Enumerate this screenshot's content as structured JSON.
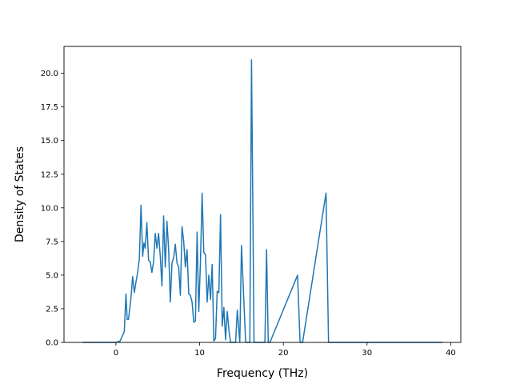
{
  "chart_data": {
    "type": "line",
    "title": "",
    "xlabel": "Frequency (THz)",
    "ylabel": "Density of States",
    "xlim": [
      -6.2,
      41.2
    ],
    "ylim": [
      0,
      22.0
    ],
    "grid": false,
    "legend": "none",
    "xticks": [
      0,
      10,
      20,
      30,
      40
    ],
    "yticks": [
      0.0,
      2.5,
      5.0,
      7.5,
      10.0,
      12.5,
      15.0,
      17.5,
      20.0
    ],
    "xtick_labels": [
      "0",
      "10",
      "20",
      "30",
      "40"
    ],
    "ytick_labels": [
      "0.0",
      "2.5",
      "5.0",
      "7.5",
      "10.0",
      "12.5",
      "15.0",
      "17.5",
      "20.0"
    ],
    "series": [
      {
        "color": "#1f77b4",
        "x": [
          -4.0,
          0.0,
          0.5,
          1.0,
          1.2,
          1.35,
          1.5,
          1.8,
          2.0,
          2.2,
          2.4,
          2.6,
          2.8,
          3.0,
          3.2,
          3.35,
          3.5,
          3.7,
          3.9,
          4.1,
          4.3,
          4.5,
          4.7,
          4.9,
          5.1,
          5.3,
          5.5,
          5.7,
          5.9,
          6.1,
          6.3,
          6.5,
          6.7,
          6.9,
          7.1,
          7.3,
          7.5,
          7.7,
          7.9,
          8.1,
          8.3,
          8.5,
          8.7,
          8.9,
          9.1,
          9.3,
          9.5,
          9.7,
          9.9,
          10.1,
          10.3,
          10.5,
          10.7,
          10.9,
          11.1,
          11.3,
          11.5,
          11.7,
          11.9,
          12.1,
          12.3,
          12.5,
          12.7,
          12.9,
          13.1,
          13.3,
          13.5,
          13.7,
          13.9,
          14.1,
          14.3,
          14.5,
          14.8,
          15.0,
          15.5,
          15.8,
          16.0,
          16.2,
          16.5,
          16.8,
          17.8,
          18.0,
          18.2,
          18.4,
          21.7,
          22.0,
          22.3,
          25.1,
          25.4,
          25.7,
          34.9,
          35.2,
          35.5,
          39.0
        ],
        "y": [
          0,
          0,
          0.1,
          0.8,
          3.6,
          1.7,
          1.7,
          3.3,
          4.9,
          3.7,
          4.5,
          5.2,
          6.2,
          10.2,
          6.4,
          7.4,
          7.0,
          8.9,
          6.1,
          6.0,
          5.2,
          6.0,
          8.1,
          7.0,
          8.1,
          6.4,
          4.2,
          9.4,
          5.6,
          9.0,
          6.9,
          3.0,
          5.9,
          6.3,
          7.3,
          5.9,
          5.6,
          3.5,
          8.6,
          7.5,
          5.6,
          6.9,
          3.6,
          3.5,
          3.0,
          1.5,
          1.6,
          8.2,
          2.3,
          6.0,
          11.1,
          6.7,
          6.5,
          3.0,
          5.0,
          3.2,
          5.8,
          0.1,
          0.3,
          3.8,
          3.7,
          9.5,
          1.2,
          2.6,
          0.2,
          2.3,
          0.9,
          0,
          0,
          0,
          0,
          2.4,
          0,
          7.2,
          0,
          0,
          0,
          21.0,
          0,
          0,
          0,
          6.9,
          0,
          0,
          5.0,
          0,
          0,
          11.1,
          0,
          0,
          0,
          0,
          0,
          0
        ]
      }
    ]
  }
}
